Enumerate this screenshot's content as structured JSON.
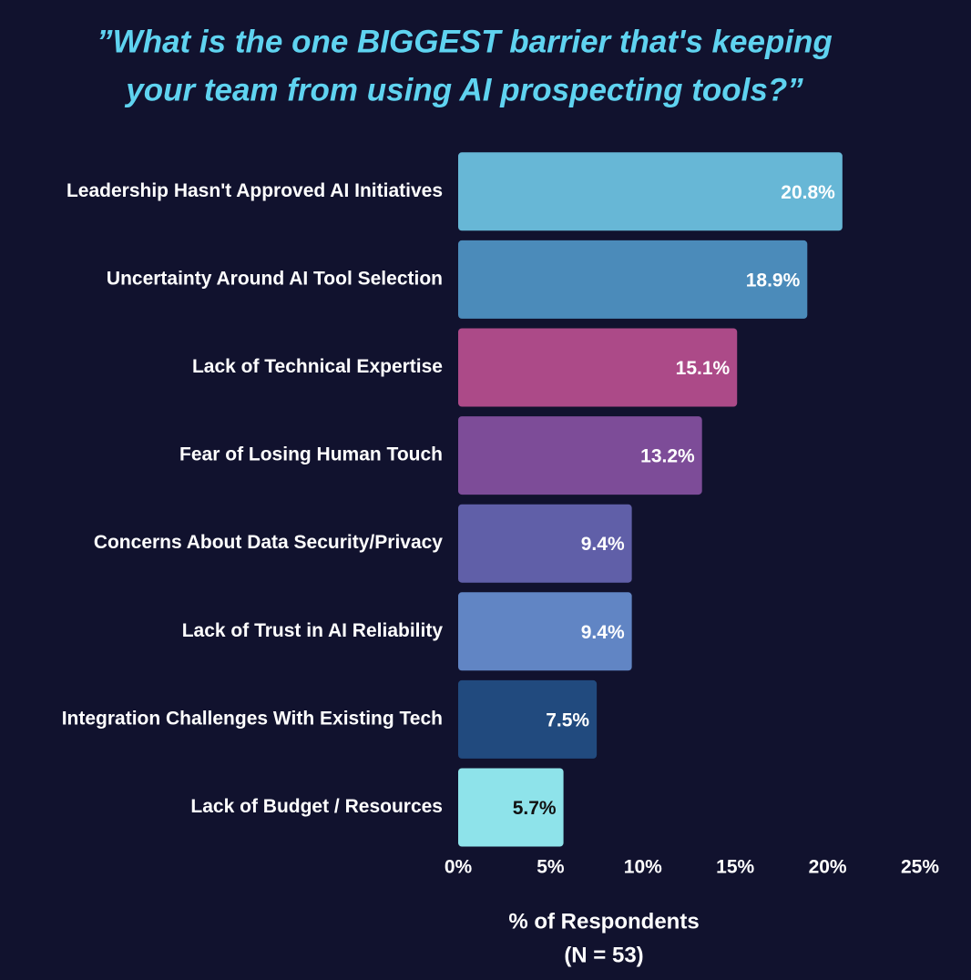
{
  "chart_data": {
    "type": "barh",
    "title": [
      "”What is the one BIGGEST barrier that's keeping",
      "your team from using AI prospecting tools?”"
    ],
    "categories": [
      "Leadership Hasn't Approved AI Initiatives",
      "Uncertainty Around AI Tool Selection",
      "Lack of Technical Expertise",
      "Fear of Losing Human Touch",
      "Concerns About Data Security/Privacy",
      "Lack of Trust in AI Reliability",
      "Integration Challenges With Existing Tech",
      "Lack of Budget / Resources"
    ],
    "values": [
      20.8,
      18.9,
      15.1,
      13.2,
      9.4,
      9.4,
      7.5,
      5.7
    ],
    "value_labels": [
      "20.8%",
      "18.9%",
      "15.1%",
      "13.2%",
      "9.4%",
      "9.4%",
      "7.5%",
      "5.7%"
    ],
    "colors": [
      "#67b7d6",
      "#4b8bba",
      "#ac4a88",
      "#7d4c98",
      "#605fa8",
      "#6185c4",
      "#214a7e",
      "#8ee3ea"
    ],
    "xlim": [
      0,
      25
    ],
    "xticks": [
      {
        "value": 0,
        "label": "0%"
      },
      {
        "value": 5,
        "label": "5%"
      },
      {
        "value": 10,
        "label": "10%"
      },
      {
        "value": 15,
        "label": "15%"
      },
      {
        "value": 20,
        "label": "20%"
      },
      {
        "value": 25,
        "label": "25%"
      }
    ],
    "xlabel": [
      "% of Respondents",
      "(N = 53)"
    ]
  }
}
